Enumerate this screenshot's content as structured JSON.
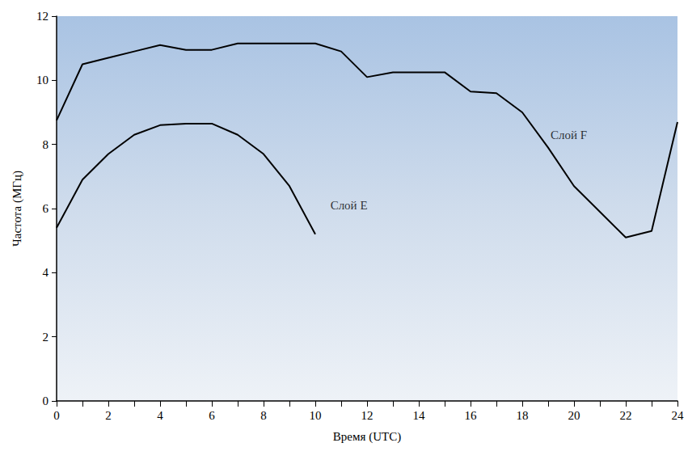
{
  "chart_data": {
    "type": "line",
    "x_label": "Время (UTC)",
    "y_label": "Частота (МГц)",
    "x": [
      0,
      1,
      2,
      3,
      4,
      5,
      6,
      7,
      8,
      9,
      10,
      11,
      12,
      13,
      14,
      15,
      16,
      17,
      18,
      19,
      20,
      21,
      22,
      23,
      24
    ],
    "series": [
      {
        "name": "Слой F",
        "color": "#000000",
        "values": [
          8.75,
          10.5,
          10.7,
          10.9,
          11.1,
          10.95,
          10.95,
          11.15,
          11.15,
          11.15,
          11.15,
          10.9,
          10.1,
          10.25,
          10.25,
          10.25,
          9.65,
          9.6,
          9.0,
          7.9,
          6.7,
          5.9,
          5.1,
          5.3,
          8.7
        ]
      },
      {
        "name": "Слой E",
        "color": "#000000",
        "values": [
          5.4,
          6.9,
          7.7,
          8.3,
          8.6,
          8.65,
          8.65,
          8.3,
          7.7,
          6.7,
          5.2,
          null,
          null,
          null,
          null,
          null,
          null,
          null,
          null,
          null,
          null,
          null,
          null,
          null,
          null
        ]
      }
    ],
    "annotations": [
      {
        "text": "Слой E",
        "x": 11.3,
        "y": 6.1
      },
      {
        "text": "Слой F",
        "x": 19.8,
        "y": 8.3
      }
    ],
    "xlim": [
      0,
      24
    ],
    "xticks": [
      0,
      2,
      4,
      6,
      8,
      10,
      12,
      14,
      16,
      18,
      20,
      22,
      24
    ],
    "ylim": [
      0,
      12
    ],
    "yticks": [
      0,
      2,
      4,
      6,
      8,
      10,
      12
    ],
    "grid": false
  }
}
